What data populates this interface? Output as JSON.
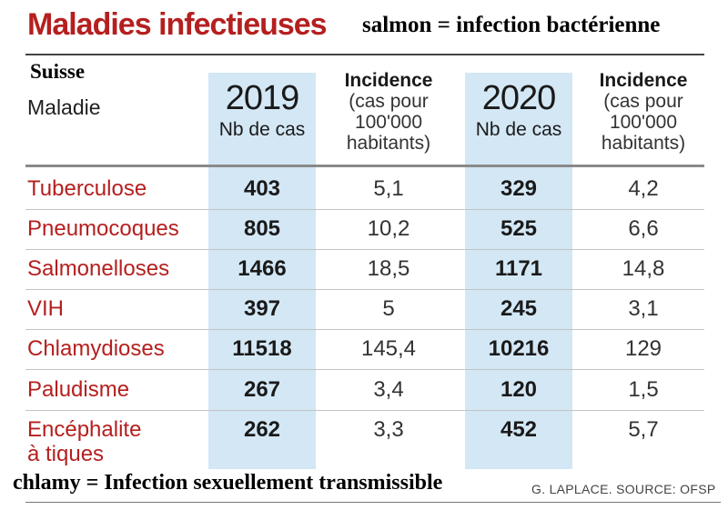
{
  "title": "Maladies infectieuses",
  "note_top": "salmon = infection bactérienne",
  "country": "Suisse",
  "maladie_header": "Maladie",
  "columns": {
    "y2019": {
      "year": "2019",
      "sub": "Nb de cas"
    },
    "inc2019": {
      "line1": "Incidence",
      "line2": "(cas pour",
      "line3": "100'000",
      "line4": "habitants)"
    },
    "y2020": {
      "year": "2020",
      "sub": "Nb de cas"
    },
    "inc2020": {
      "line1": "Incidence",
      "line2": "(cas pour",
      "line3": "100'000",
      "line4": "habitants)"
    }
  },
  "rows": [
    {
      "name": "Tuberculose",
      "c2019": "403",
      "i2019": "5,1",
      "c2020": "329",
      "i2020": "4,2"
    },
    {
      "name": "Pneumocoques",
      "c2019": "805",
      "i2019": "10,2",
      "c2020": "525",
      "i2020": "6,6"
    },
    {
      "name": "Salmonelloses",
      "c2019": "1466",
      "i2019": "18,5",
      "c2020": "1171",
      "i2020": "14,8"
    },
    {
      "name": "VIH",
      "c2019": "397",
      "i2019": "5",
      "c2020": "245",
      "i2020": "3,1"
    },
    {
      "name": "Chlamydioses",
      "c2019": "11518",
      "i2019": "145,4",
      "c2020": "10216",
      "i2020": "129"
    },
    {
      "name": "Paludisme",
      "c2019": "267",
      "i2019": "3,4",
      "c2020": "120",
      "i2020": "1,5"
    },
    {
      "name_line1": "Encéphalite",
      "name_line2": "à tiques",
      "c2019": "262",
      "i2019": "3,3",
      "c2020": "452",
      "i2020": "5,7"
    }
  ],
  "note_bottom": "chlamy = Infection sexuellement transmissible",
  "credit": "G. LAPLACE. SOURCE: OFSP"
}
